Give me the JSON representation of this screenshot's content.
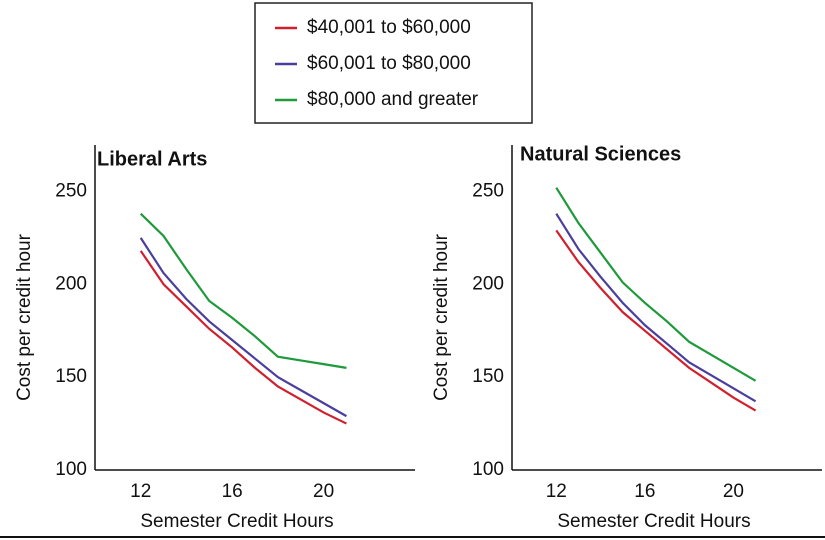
{
  "chart_data": [
    {
      "type": "line",
      "title": "Liberal Arts",
      "x_label": "Semester Credit Hours",
      "y_label": "Cost per credit hour",
      "x": [
        12,
        13,
        14,
        15,
        16,
        17,
        18,
        19,
        20,
        21
      ],
      "series": [
        {
          "name": "$40,001 to $60,000",
          "color": "#d0202e",
          "values": [
            218,
            200,
            188,
            176,
            166,
            155,
            145,
            138,
            131,
            125
          ]
        },
        {
          "name": "$60,001 to $80,000",
          "color": "#4a3f9c",
          "values": [
            225,
            206,
            192,
            180,
            170,
            160,
            150,
            143,
            136,
            129
          ]
        },
        {
          "name": "$80,000 and greater",
          "color": "#1e9a3a",
          "values": [
            238,
            226,
            208,
            191,
            182,
            172,
            161,
            159,
            157,
            155
          ]
        }
      ],
      "xlim": [
        10,
        24
      ],
      "xticks": [
        12,
        16,
        20
      ],
      "ylim": [
        100,
        275
      ],
      "yticks": [
        100,
        150,
        200,
        250
      ]
    },
    {
      "type": "line",
      "title": "Natural Sciences",
      "x_label": "Semester Credit Hours",
      "y_label": "Cost per credit hour",
      "x": [
        12,
        13,
        14,
        15,
        16,
        17,
        18,
        19,
        20,
        21
      ],
      "series": [
        {
          "color": "#d0202e",
          "values": [
            229,
            212,
            198,
            185,
            175,
            165,
            155,
            147,
            139,
            132
          ]
        },
        {
          "color": "#4a3f9c",
          "values": [
            238,
            219,
            204,
            190,
            178,
            168,
            158,
            151,
            144,
            137
          ]
        },
        {
          "color": "#1e9a3a",
          "values": [
            252,
            233,
            217,
            201,
            190,
            180,
            169,
            162,
            155,
            148
          ]
        }
      ],
      "xlim": [
        10,
        24
      ],
      "xticks": [
        12,
        16,
        20
      ],
      "ylim": [
        100,
        275
      ],
      "yticks": [
        100,
        150,
        200,
        250
      ]
    }
  ]
}
